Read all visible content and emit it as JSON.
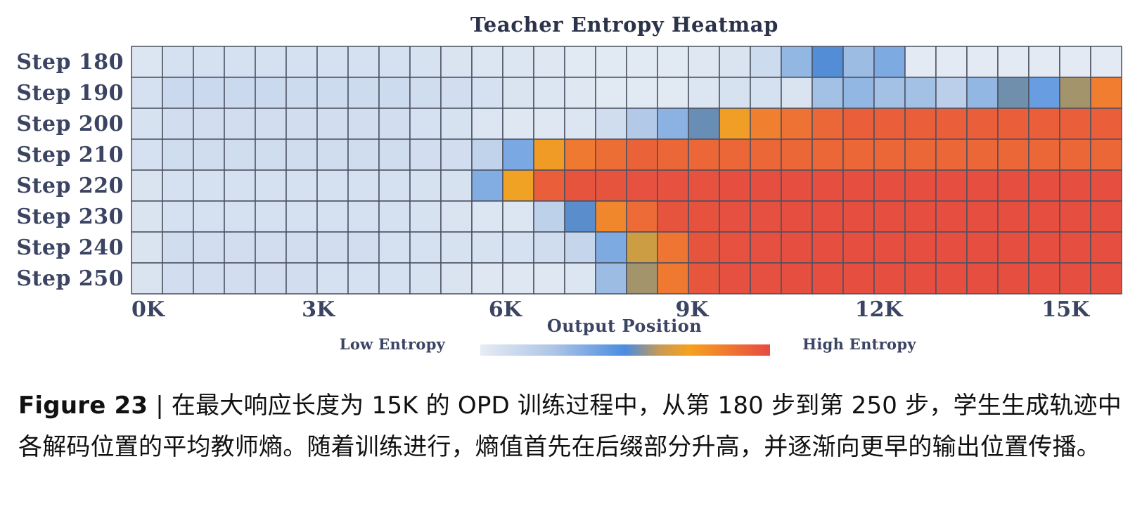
{
  "colors": {
    "low": "#e6ecf4",
    "mid_blue": "#4f8fdf",
    "orange": "#f5a21f",
    "high": "#e64a42",
    "grid": "#4a5060",
    "text": "#3b4462"
  },
  "chart_data": {
    "type": "heatmap",
    "title": "Teacher Entropy Heatmap",
    "xlabel": "Output Position",
    "ylabel": "",
    "rows": [
      "Step 180",
      "Step 190",
      "Step 200",
      "Step 210",
      "Step 220",
      "Step 230",
      "Step 240",
      "Step 250"
    ],
    "x_ticks": [
      "0K",
      "3K",
      "6K",
      "9K",
      "12K",
      "15K"
    ],
    "x_tick_values": [
      0,
      3000,
      6000,
      9000,
      12000,
      15000
    ],
    "x_range": [
      0,
      15900
    ],
    "bin_width": 500,
    "colorbar_low_label": "Low Entropy",
    "colorbar_high_label": "High Entropy",
    "value_range": [
      0,
      1
    ],
    "values": [
      [
        0.04,
        0.07,
        0.07,
        0.07,
        0.07,
        0.07,
        0.07,
        0.07,
        0.07,
        0.06,
        0.05,
        0.04,
        0.04,
        0.03,
        0.02,
        0.02,
        0.02,
        0.02,
        0.03,
        0.05,
        0.1,
        0.28,
        0.46,
        0.26,
        0.33,
        0.01,
        0.01,
        0.01,
        0.01,
        0.01,
        0.01,
        0.01
      ],
      [
        0.07,
        0.11,
        0.11,
        0.11,
        0.11,
        0.1,
        0.1,
        0.1,
        0.1,
        0.09,
        0.08,
        0.07,
        0.05,
        0.04,
        0.03,
        0.02,
        0.02,
        0.02,
        0.04,
        0.06,
        0.07,
        0.05,
        0.24,
        0.28,
        0.24,
        0.24,
        0.16,
        0.28,
        0.5,
        0.38,
        0.57,
        0.8
      ],
      [
        0.06,
        0.08,
        0.08,
        0.08,
        0.08,
        0.08,
        0.08,
        0.08,
        0.08,
        0.07,
        0.06,
        0.04,
        0.03,
        0.03,
        0.04,
        0.09,
        0.19,
        0.3,
        0.49,
        0.7,
        0.79,
        0.83,
        0.86,
        0.88,
        0.88,
        0.88,
        0.88,
        0.88,
        0.88,
        0.88,
        0.88,
        0.88
      ],
      [
        0.07,
        0.09,
        0.09,
        0.09,
        0.09,
        0.09,
        0.09,
        0.09,
        0.09,
        0.08,
        0.08,
        0.14,
        0.34,
        0.71,
        0.81,
        0.84,
        0.87,
        0.86,
        0.86,
        0.86,
        0.86,
        0.86,
        0.86,
        0.86,
        0.86,
        0.86,
        0.86,
        0.86,
        0.86,
        0.86,
        0.86,
        0.86
      ],
      [
        0.05,
        0.07,
        0.07,
        0.07,
        0.07,
        0.07,
        0.07,
        0.07,
        0.07,
        0.06,
        0.06,
        0.32,
        0.69,
        0.88,
        0.93,
        0.93,
        0.95,
        0.95,
        0.95,
        0.97,
        0.97,
        0.97,
        0.97,
        0.97,
        0.97,
        0.97,
        0.97,
        0.97,
        0.97,
        0.97,
        0.97,
        0.97
      ],
      [
        0.05,
        0.07,
        0.07,
        0.07,
        0.07,
        0.07,
        0.07,
        0.07,
        0.07,
        0.06,
        0.05,
        0.04,
        0.04,
        0.15,
        0.47,
        0.77,
        0.85,
        0.93,
        0.94,
        0.96,
        0.96,
        0.97,
        0.97,
        0.97,
        0.97,
        0.97,
        0.97,
        0.97,
        0.97,
        0.97,
        0.97,
        0.97
      ],
      [
        0.05,
        0.09,
        0.08,
        0.08,
        0.08,
        0.08,
        0.08,
        0.08,
        0.07,
        0.07,
        0.06,
        0.06,
        0.07,
        0.09,
        0.13,
        0.33,
        0.63,
        0.82,
        0.93,
        0.95,
        0.96,
        0.97,
        0.97,
        0.97,
        0.97,
        0.97,
        0.97,
        0.97,
        0.97,
        0.97,
        0.97,
        0.97
      ],
      [
        0.05,
        0.08,
        0.08,
        0.08,
        0.08,
        0.08,
        0.07,
        0.07,
        0.07,
        0.06,
        0.05,
        0.03,
        0.03,
        0.03,
        0.04,
        0.26,
        0.57,
        0.81,
        0.92,
        0.96,
        0.96,
        0.97,
        0.97,
        0.97,
        0.97,
        0.97,
        0.97,
        0.97,
        0.97,
        0.97,
        0.97,
        0.97
      ]
    ],
    "grid": true,
    "legend": "bottom"
  },
  "caption": {
    "label": "Figure 23",
    "separator": " | ",
    "text": "在最大响应长度为 15K 的 OPD 训练过程中，从第 180 步到第 250 步，学生生成轨迹中各解码位置的平均教师熵。随着训练进行，熵值首先在后缀部分升高，并逐渐向更早的输出位置传播。"
  }
}
